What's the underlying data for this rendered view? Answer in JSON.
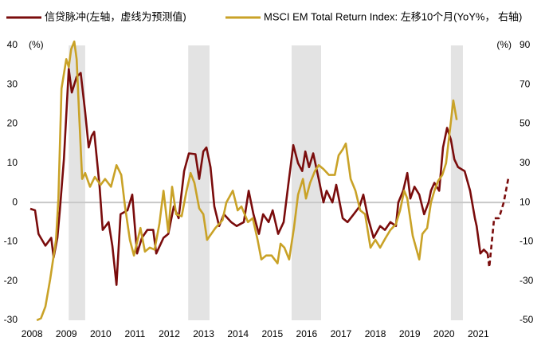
{
  "chart_data": {
    "type": "line",
    "ylabel": "(%)",
    "y2label": "(%)",
    "xlim": [
      2007.95,
      2021.92
    ],
    "xticks": [
      2008,
      2009,
      2010,
      2011,
      2012,
      2013,
      2014,
      2015,
      2016,
      2017,
      2018,
      2019,
      2020,
      2021
    ],
    "ylim": [
      -30,
      40
    ],
    "yticks": [
      -30,
      -20,
      -10,
      0,
      10,
      20,
      30,
      40
    ],
    "y2lim": [
      -50,
      90
    ],
    "y2ticks": [
      -50,
      -30,
      -10,
      10,
      30,
      50,
      70,
      90
    ],
    "zero_line": true,
    "shade_color": "#e3e3e3",
    "shaded_periods": [
      [
        2009.07,
        2009.55
      ],
      [
        2012.55,
        2013.17
      ],
      [
        2015.56,
        2016.42
      ],
      [
        2020.2,
        2020.55
      ]
    ],
    "series": [
      {
        "name": "信贷脉冲(左轴，虚线为预测值)",
        "color": "#7a0c0c",
        "axis": "y",
        "dash_from_index": 100,
        "x": [
          2007.95,
          2008.09,
          2008.19,
          2008.39,
          2008.56,
          2008.63,
          2008.74,
          2008.81,
          2008.93,
          2009.07,
          2009.16,
          2009.3,
          2009.42,
          2009.55,
          2009.65,
          2009.74,
          2009.81,
          2009.97,
          2010.06,
          2010.23,
          2010.34,
          2010.46,
          2010.58,
          2010.78,
          2010.92,
          2011.06,
          2011.2,
          2011.36,
          2011.53,
          2011.62,
          2011.83,
          2011.97,
          2012.13,
          2012.27,
          2012.43,
          2012.57,
          2012.76,
          2012.87,
          2012.99,
          2013.08,
          2013.2,
          2013.31,
          2013.45,
          2013.59,
          2013.8,
          2013.96,
          2014.17,
          2014.31,
          2014.45,
          2014.61,
          2014.73,
          2014.89,
          2015.01,
          2015.17,
          2015.33,
          2015.47,
          2015.61,
          2015.75,
          2015.87,
          2015.96,
          2016.07,
          2016.19,
          2016.35,
          2016.49,
          2016.58,
          2016.75,
          2016.86,
          2017.05,
          2017.19,
          2017.37,
          2017.54,
          2017.65,
          2017.79,
          2017.95,
          2018.14,
          2018.28,
          2018.44,
          2018.6,
          2018.67,
          2018.81,
          2018.93,
          2019.02,
          2019.14,
          2019.28,
          2019.42,
          2019.55,
          2019.62,
          2019.72,
          2019.86,
          2019.97,
          2020.09,
          2020.2,
          2020.3,
          2020.41,
          2020.6,
          2020.76,
          2020.9,
          2020.95,
          2021.06,
          2021.16,
          2021.27,
          2021.32,
          2021.46,
          2021.6,
          2021.74,
          2021.88
        ],
        "values": [
          -1.6,
          -2,
          -8,
          -11,
          -9,
          -14,
          -9,
          -2,
          11,
          34,
          28,
          32,
          33,
          23,
          14,
          17,
          18,
          4,
          -7,
          -5,
          -11,
          -21,
          -3,
          -2,
          2,
          -13,
          -9,
          -7,
          -7,
          -13,
          -9,
          -8,
          -1,
          -4,
          8,
          12.5,
          12.3,
          6,
          13,
          14,
          9,
          -1,
          -6,
          -3,
          -5,
          -6,
          -5,
          3,
          -3,
          -8,
          -3,
          -5,
          -2,
          -8,
          -5,
          5,
          14.6,
          10,
          8,
          13,
          9,
          12.5,
          6,
          0,
          3,
          0,
          4.5,
          -4,
          -5,
          -3,
          -1,
          2,
          -4,
          -9,
          -6,
          -7,
          -5,
          -6,
          0,
          3,
          7.5,
          1,
          4,
          2,
          -3,
          0,
          3,
          5,
          3,
          14,
          19,
          16,
          11,
          9,
          8,
          3,
          -4,
          -6,
          -13,
          -12,
          -13,
          -16.5,
          -4,
          -4,
          0,
          6.5
        ]
      },
      {
        "name": "MSCI EM Total Return Index: 左移10个月(YoY%， 右轴)",
        "color": "#c9a227",
        "axis": "y2",
        "x": [
          2008.14,
          2008.26,
          2008.39,
          2008.53,
          2008.7,
          2008.77,
          2008.86,
          2009.0,
          2009.07,
          2009.14,
          2009.23,
          2009.3,
          2009.37,
          2009.46,
          2009.55,
          2009.69,
          2009.83,
          2010.0,
          2010.13,
          2010.3,
          2010.46,
          2010.6,
          2010.71,
          2010.85,
          2010.97,
          2011.16,
          2011.29,
          2011.43,
          2011.57,
          2011.71,
          2011.83,
          2011.97,
          2012.08,
          2012.2,
          2012.36,
          2012.5,
          2012.62,
          2012.73,
          2012.87,
          2012.99,
          2013.1,
          2013.34,
          2013.55,
          2013.66,
          2013.85,
          2013.99,
          2014.1,
          2014.29,
          2014.43,
          2014.57,
          2014.68,
          2014.82,
          2014.98,
          2015.15,
          2015.24,
          2015.35,
          2015.49,
          2015.63,
          2015.75,
          2015.89,
          2015.98,
          2016.1,
          2016.24,
          2016.35,
          2016.49,
          2016.65,
          2016.82,
          2016.93,
          2017.05,
          2017.14,
          2017.28,
          2017.42,
          2017.56,
          2017.7,
          2017.86,
          2018.0,
          2018.14,
          2018.3,
          2018.44,
          2018.6,
          2018.72,
          2018.84,
          2018.93,
          2019.09,
          2019.28,
          2019.37,
          2019.51,
          2019.62,
          2019.72,
          2019.83,
          2019.95,
          2020.06,
          2020.18,
          2020.27,
          2020.37
        ],
        "values": [
          -50,
          -49,
          -43,
          -29,
          -9,
          12,
          68,
          83,
          79,
          88,
          92,
          83,
          56,
          22,
          25,
          18,
          23,
          19,
          22,
          18,
          29,
          24,
          8,
          -9,
          -17,
          -3,
          -15,
          -13,
          -14,
          -1,
          16,
          -5,
          18,
          4,
          3,
          16,
          25,
          20,
          7,
          4,
          -9,
          -3,
          1,
          10,
          16,
          6,
          8,
          0,
          2,
          -9,
          -19,
          -17,
          -17,
          -21,
          -11,
          -13,
          -19,
          -3,
          14,
          22,
          12,
          20,
          26,
          29,
          27,
          24,
          24,
          34,
          37,
          40,
          22,
          16,
          6,
          4,
          -13,
          -9,
          -13,
          -8,
          -4,
          -1,
          6,
          16,
          12,
          -7,
          -19,
          -6,
          -3,
          10,
          16,
          21,
          24,
          30,
          48,
          62,
          52
        ]
      }
    ]
  }
}
